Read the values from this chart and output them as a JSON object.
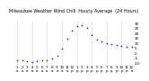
{
  "title": "Milwaukee Weather Wind Chill  Hourly Average  (24 Hours)",
  "hours": [
    1,
    2,
    3,
    4,
    5,
    6,
    7,
    8,
    9,
    10,
    11,
    12,
    13,
    14,
    15,
    16,
    17,
    18,
    19,
    20,
    21,
    22,
    23,
    24
  ],
  "values": [
    -8,
    -8,
    -8.5,
    -9,
    -8.5,
    -8,
    -7.5,
    -6,
    -3,
    4,
    14,
    22,
    27,
    28,
    25,
    18,
    13,
    11,
    10,
    9,
    8,
    7,
    6,
    6
  ],
  "dot_color": "#0000cc",
  "bg_color": "#ffffff",
  "grid_color": "#aaaaaa",
  "ylim": [
    -12,
    32
  ],
  "y_ticks": [
    -10,
    -5,
    0,
    5,
    10,
    15,
    20,
    25,
    30
  ],
  "tick_fontsize": 3.0,
  "title_fontsize": 3.5,
  "dot_size": 1.2,
  "vgrid_positions": [
    1,
    4,
    7,
    10,
    13,
    16,
    19,
    22,
    25
  ]
}
